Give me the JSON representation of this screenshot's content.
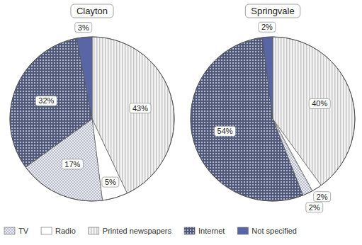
{
  "chart_data": [
    {
      "type": "pie",
      "title": "Clayton",
      "categories": [
        "TV",
        "Radio",
        "Printed newspapers",
        "Internet",
        "Not specified"
      ],
      "values": [
        17,
        5,
        43,
        32,
        3
      ],
      "value_labels": [
        "17%",
        "5%",
        "43%",
        "32%",
        "3%"
      ],
      "colors": [
        "#b9bccb",
        "#ffffff",
        "#c8c8c8",
        "#4f5878",
        "#5866a6"
      ],
      "data_labels": true,
      "legend": "bottom"
    },
    {
      "type": "pie",
      "title": "Springvale",
      "categories": [
        "TV",
        "Radio",
        "Printed newspapers",
        "Internet",
        "Not specified"
      ],
      "values": [
        2,
        2,
        40,
        54,
        2
      ],
      "value_labels": [
        "2%",
        "2%",
        "40%",
        "54%",
        "2%"
      ],
      "colors": [
        "#b9bccb",
        "#ffffff",
        "#c8c8c8",
        "#4f5878",
        "#5866a6"
      ],
      "data_labels": true,
      "legend": "bottom"
    }
  ]
}
